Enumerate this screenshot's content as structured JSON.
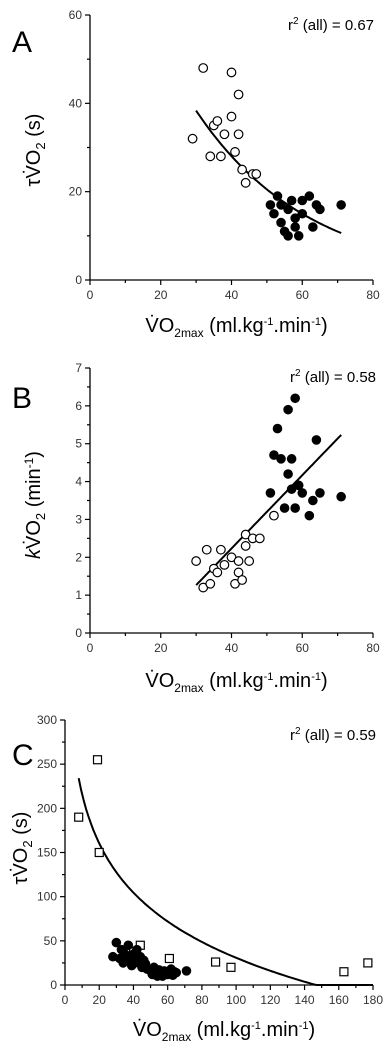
{
  "chart_data": [
    {
      "type": "scatter",
      "panel": "A",
      "annotation": "r2 (all) = 0.67",
      "ylabel": "τV̇O2 (s)",
      "xlabel": "V̇O2max (ml.kg-1.min-1)",
      "xlim": [
        0,
        80
      ],
      "ylim": [
        0,
        60
      ],
      "xticks": [
        0,
        20,
        40,
        60,
        80
      ],
      "yticks": [
        0,
        20,
        40,
        60
      ],
      "series": [
        {
          "marker": "open-circle",
          "points": [
            [
              29,
              32
            ],
            [
              32,
              48
            ],
            [
              34,
              28
            ],
            [
              35,
              35
            ],
            [
              36,
              36
            ],
            [
              37,
              28
            ],
            [
              38,
              33
            ],
            [
              40,
              47
            ],
            [
              40,
              37
            ],
            [
              41,
              29
            ],
            [
              42,
              42
            ],
            [
              42,
              33
            ],
            [
              43,
              25
            ],
            [
              44,
              22
            ],
            [
              46,
              24
            ],
            [
              47,
              24
            ]
          ]
        },
        {
          "marker": "filled-circle",
          "points": [
            [
              51,
              17
            ],
            [
              52,
              15
            ],
            [
              53,
              19
            ],
            [
              54,
              13
            ],
            [
              54,
              17
            ],
            [
              55,
              11
            ],
            [
              56,
              10
            ],
            [
              56,
              16
            ],
            [
              57,
              18
            ],
            [
              58,
              14
            ],
            [
              58,
              12
            ],
            [
              59,
              10
            ],
            [
              60,
              18
            ],
            [
              60,
              15
            ],
            [
              62,
              19
            ],
            [
              63,
              12
            ],
            [
              64,
              17
            ],
            [
              65,
              16
            ],
            [
              71,
              17
            ]
          ]
        }
      ],
      "fit": {
        "form": "a*exp(-b*x)",
        "a": 98.1,
        "b": 0.0313,
        "x_range": [
          30,
          71
        ]
      }
    },
    {
      "type": "scatter",
      "panel": "B",
      "annotation": "r2 (all) = 0.58",
      "ylabel": "kV̇O2 (min-1)",
      "xlabel": "V̇O2max (ml.kg-1.min-1)",
      "xlim": [
        0,
        80
      ],
      "ylim": [
        0,
        7
      ],
      "xticks": [
        0,
        20,
        40,
        60,
        80
      ],
      "yticks": [
        0,
        1,
        2,
        3,
        4,
        5,
        6,
        7
      ],
      "series": [
        {
          "marker": "open-circle",
          "points": [
            [
              30,
              1.9
            ],
            [
              32,
              1.2
            ],
            [
              33,
              2.2
            ],
            [
              34,
              1.3
            ],
            [
              35,
              1.7
            ],
            [
              36,
              1.6
            ],
            [
              37,
              2.2
            ],
            [
              38,
              1.8
            ],
            [
              40,
              2.0
            ],
            [
              41,
              1.3
            ],
            [
              42,
              1.6
            ],
            [
              42,
              1.9
            ],
            [
              43,
              1.4
            ],
            [
              44,
              2.3
            ],
            [
              44,
              2.6
            ],
            [
              45,
              1.9
            ],
            [
              46,
              2.5
            ],
            [
              48,
              2.5
            ],
            [
              52,
              3.1
            ]
          ]
        },
        {
          "marker": "filled-circle",
          "points": [
            [
              51,
              3.7
            ],
            [
              52,
              4.7
            ],
            [
              53,
              5.4
            ],
            [
              54,
              4.6
            ],
            [
              55,
              3.3
            ],
            [
              56,
              5.9
            ],
            [
              56,
              4.2
            ],
            [
              57,
              3.8
            ],
            [
              57,
              4.6
            ],
            [
              58,
              6.2
            ],
            [
              58,
              3.3
            ],
            [
              59,
              3.9
            ],
            [
              60,
              3.7
            ],
            [
              62,
              3.1
            ],
            [
              63,
              3.5
            ],
            [
              64,
              5.1
            ],
            [
              65,
              3.7
            ],
            [
              71,
              3.6
            ]
          ]
        }
      ],
      "fit": {
        "form": "a+b*x",
        "a": -1.64,
        "b": 0.0968,
        "x_range": [
          30,
          71
        ]
      }
    },
    {
      "type": "scatter",
      "panel": "C",
      "annotation": "r2 (all) = 0.59",
      "ylabel": "τV̇O2 (s)",
      "xlabel": "V̇O2max (ml.kg-1.min-1)",
      "xlim": [
        0,
        180
      ],
      "ylim": [
        0,
        300
      ],
      "xticks": [
        0,
        20,
        40,
        60,
        80,
        100,
        120,
        140,
        160,
        180
      ],
      "yticks": [
        0,
        50,
        100,
        150,
        200,
        250,
        300
      ],
      "series": [
        {
          "marker": "open-square",
          "points": [
            [
              8,
              190
            ],
            [
              19,
              255
            ],
            [
              20,
              150
            ],
            [
              40,
              38
            ],
            [
              44,
              45
            ],
            [
              61,
              30
            ],
            [
              88,
              26
            ],
            [
              97,
              20
            ],
            [
              163,
              15
            ],
            [
              177,
              25
            ]
          ]
        },
        {
          "marker": "filled-circle",
          "points": [
            [
              28,
              32
            ],
            [
              30,
              48
            ],
            [
              32,
              30
            ],
            [
              33,
              40
            ],
            [
              34,
              25
            ],
            [
              35,
              35
            ],
            [
              36,
              28
            ],
            [
              37,
              45
            ],
            [
              38,
              30
            ],
            [
              39,
              22
            ],
            [
              40,
              35
            ],
            [
              41,
              28
            ],
            [
              42,
              40
            ],
            [
              43,
              25
            ],
            [
              44,
              32
            ],
            [
              45,
              20
            ],
            [
              46,
              28
            ],
            [
              47,
              24
            ],
            [
              48,
              18
            ],
            [
              50,
              16
            ],
            [
              51,
              12
            ],
            [
              52,
              20
            ],
            [
              53,
              15
            ],
            [
              54,
              10
            ],
            [
              55,
              17
            ],
            [
              56,
              12
            ],
            [
              57,
              10
            ],
            [
              58,
              16
            ],
            [
              59,
              14
            ],
            [
              60,
              12
            ],
            [
              62,
              18
            ],
            [
              63,
              11
            ],
            [
              64,
              15
            ],
            [
              65,
              14
            ],
            [
              71,
              16
            ]
          ]
        }
      ],
      "fit": {
        "form": "a-b*ln(x)",
        "a": 401.5,
        "b": 80.5,
        "x_range": [
          8,
          180
        ]
      }
    }
  ]
}
